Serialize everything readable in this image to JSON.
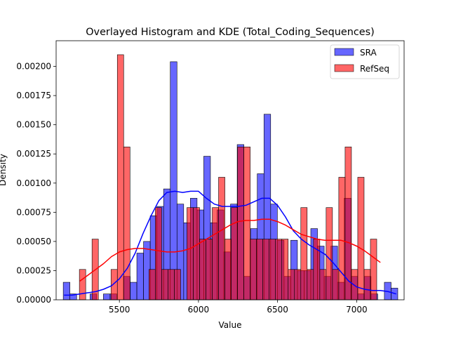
{
  "chart_data": {
    "type": "histogram",
    "title": "Overlayed Histogram and KDE (Total_Coding_Sequences)",
    "xlabel": "Value",
    "ylabel": "Density",
    "xlim": [
      5100,
      7300
    ],
    "ylim": [
      0,
      0.00222
    ],
    "xticks": [
      5500,
      6000,
      6500,
      7000
    ],
    "yticks": [
      0,
      0.00025,
      0.0005,
      0.00075,
      0.001,
      0.00125,
      0.0015,
      0.00175,
      0.002
    ],
    "ytick_labels": [
      "0.00000",
      "0.00025",
      "0.00050",
      "0.00075",
      "0.00100",
      "0.00125",
      "0.00150",
      "0.00175",
      "0.00200"
    ],
    "legend": {
      "placement": "top-right"
    },
    "series": [
      {
        "name": "SRA",
        "color": "#0000ff",
        "bin_start": 5145,
        "bin_width": 42.3,
        "density": [
          0.00015,
          5e-05,
          0,
          0,
          5e-05,
          0,
          5e-05,
          5e-05,
          0,
          0.0002,
          0.00015,
          0.0004,
          0.0005,
          0.00072,
          0.0008,
          0.00095,
          0.00204,
          0.00082,
          0.00066,
          0.00087,
          0.00077,
          0.00123,
          0.00066,
          0.00077,
          0.00041,
          0.00082,
          0.00133,
          0.0002,
          0.00061,
          0.00108,
          0.00159,
          0.00082,
          0.00051,
          0.0002,
          0.00051,
          0.00025,
          0.00025,
          0.00061,
          0.00046,
          0.0002,
          0.00046,
          0.00015,
          0.00087,
          0.0002,
          5e-05,
          0.0002,
          5e-05,
          0,
          0.00015,
          0.0001
        ]
      },
      {
        "name": "RefSeq",
        "color": "#ff0000",
        "bin_start": 5247,
        "bin_width": 40,
        "density": [
          0.00026,
          0,
          0.00052,
          0,
          0,
          0.00026,
          0.0021,
          0.00131,
          0,
          0,
          0,
          0.00026,
          0.00079,
          0.00026,
          0.00026,
          0.00026,
          0,
          0.00079,
          0.00079,
          0.00052,
          0.00052,
          0.00079,
          0.00105,
          0.00052,
          0.00079,
          0.00131,
          0.00131,
          0.00052,
          0.00052,
          0.00052,
          0.00052,
          0.00052,
          0.00052,
          0.00026,
          0.00026,
          0.00079,
          0.00026,
          0.00052,
          0.00026,
          0.00079,
          0.00026,
          0.00105,
          0.00131,
          0.00026,
          0.00105,
          0.00026,
          0.00052,
          0
        ]
      }
    ],
    "kde": [
      {
        "name": "SRA",
        "color": "#0000ff",
        "x": [
          5150,
          5200,
          5250,
          5300,
          5350,
          5400,
          5450,
          5500,
          5550,
          5600,
          5650,
          5700,
          5750,
          5800,
          5850,
          5900,
          5950,
          6000,
          6050,
          6100,
          6150,
          6200,
          6250,
          6300,
          6350,
          6400,
          6450,
          6500,
          6550,
          6600,
          6650,
          6700,
          6750,
          6800,
          6850,
          6900,
          6950,
          7000,
          7050,
          7100,
          7150,
          7200,
          7250
        ],
        "y": [
          4e-05,
          4e-05,
          5e-05,
          6e-05,
          7e-05,
          9e-05,
          0.00012,
          0.00018,
          0.00027,
          0.0004,
          0.00057,
          0.00072,
          0.00085,
          0.00092,
          0.00093,
          0.00092,
          0.00093,
          0.00093,
          0.00087,
          0.00082,
          0.0008,
          0.0008,
          0.0008,
          0.00081,
          0.00084,
          0.00087,
          0.00087,
          0.00081,
          0.00071,
          0.00059,
          0.00052,
          0.00047,
          0.00043,
          0.00039,
          0.00032,
          0.00024,
          0.00016,
          0.00011,
          9e-05,
          8e-05,
          8e-05,
          7e-05,
          5e-05
        ]
      },
      {
        "name": "RefSeq",
        "color": "#ff0000",
        "x": [
          5250,
          5300,
          5350,
          5400,
          5450,
          5500,
          5550,
          5600,
          5650,
          5700,
          5750,
          5800,
          5850,
          5900,
          5950,
          6000,
          6050,
          6100,
          6150,
          6200,
          6250,
          6300,
          6350,
          6400,
          6450,
          6500,
          6550,
          6600,
          6650,
          6700,
          6750,
          6800,
          6850,
          6900,
          6950,
          7000,
          7050,
          7100,
          7150
        ],
        "y": [
          0.00016,
          0.00021,
          0.00026,
          0.00031,
          0.00037,
          0.00041,
          0.00043,
          0.00044,
          0.00044,
          0.00043,
          0.00042,
          0.00041,
          0.00041,
          0.00042,
          0.00044,
          0.00048,
          0.00052,
          0.00056,
          0.0006,
          0.00064,
          0.00067,
          0.00068,
          0.00068,
          0.00069,
          0.00069,
          0.00067,
          0.00064,
          0.0006,
          0.00056,
          0.00054,
          0.00052,
          0.00051,
          0.00051,
          0.00051,
          0.00049,
          0.00046,
          0.00042,
          0.00037,
          0.00032
        ]
      }
    ]
  }
}
